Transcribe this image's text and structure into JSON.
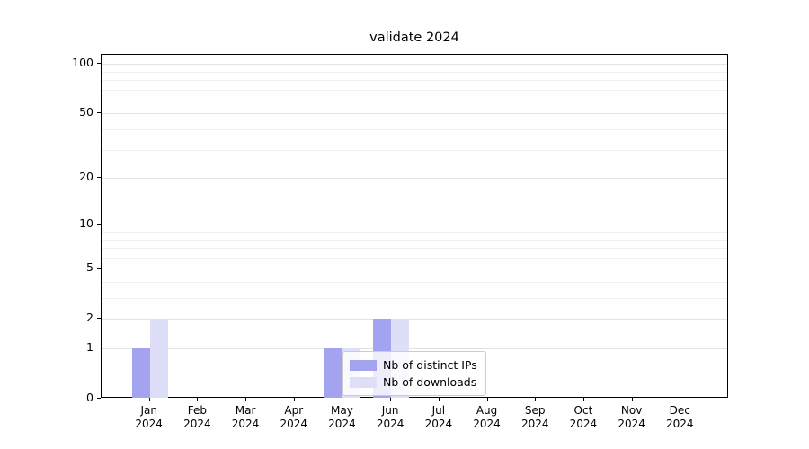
{
  "chart_data": {
    "type": "bar",
    "title": "validate 2024",
    "categories": [
      "Jan",
      "Feb",
      "Mar",
      "Apr",
      "May",
      "Jun",
      "Jul",
      "Aug",
      "Sep",
      "Oct",
      "Nov",
      "Dec"
    ],
    "year_label": "2024",
    "series": [
      {
        "name": "Nb of distinct IPs",
        "color": "#a3a3ef",
        "values": [
          1,
          0,
          0,
          0,
          1,
          2,
          0,
          0,
          0,
          0,
          0,
          0
        ]
      },
      {
        "name": "Nb of downloads",
        "color": "#dedef9",
        "values": [
          2,
          0,
          0,
          0,
          1,
          2,
          0,
          0,
          0,
          0,
          0,
          0
        ]
      }
    ],
    "yticks": [
      0,
      1,
      2,
      5,
      10,
      20,
      50,
      100
    ],
    "minor_gridlines": [
      3,
      4,
      6,
      7,
      8,
      9,
      30,
      40,
      60,
      70,
      80,
      90
    ],
    "ylim": [
      0,
      115
    ],
    "scale": "log(1+x)",
    "grid": true,
    "legend_position": "lower center-right inside plot"
  },
  "legend": {
    "items": [
      {
        "label": "Nb of distinct IPs"
      },
      {
        "label": "Nb of downloads"
      }
    ]
  }
}
